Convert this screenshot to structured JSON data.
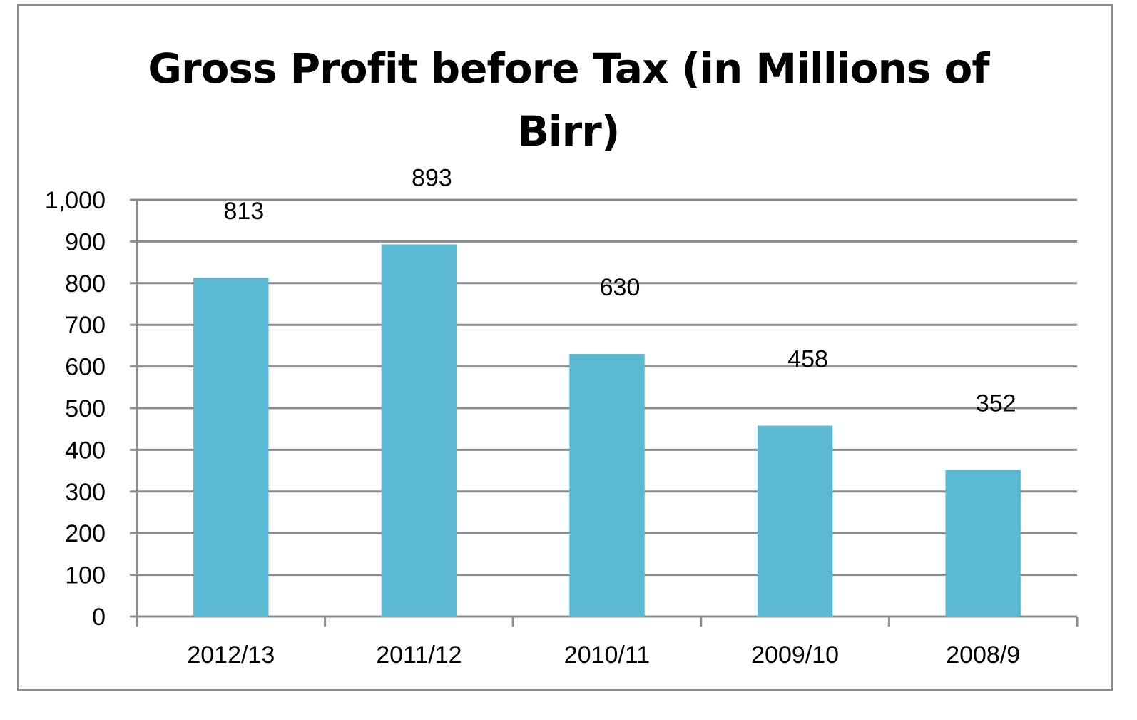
{
  "chart_data": {
    "type": "bar",
    "title_lines": [
      "Gross Profit before Tax (in Millions of",
      "Birr)"
    ],
    "xlabel": "",
    "ylabel": "",
    "categories": [
      "2012/13",
      "2011/12",
      "2010/11",
      "2009/10",
      "2008/9"
    ],
    "values": [
      813,
      893,
      630,
      458,
      352
    ],
    "data_labels": [
      "813",
      "893",
      "630",
      "458",
      "352"
    ],
    "ylim": [
      0,
      1000
    ],
    "ytick_values": [
      0,
      100,
      200,
      300,
      400,
      500,
      600,
      700,
      800,
      900,
      1000
    ],
    "ytick_labels": [
      "0",
      "100",
      "200",
      "300",
      "400",
      "500",
      "600",
      "700",
      "800",
      "900",
      "1,000"
    ],
    "grid": true,
    "legend": "none",
    "bar_color": "#5bb8d3",
    "grid_color": "#8c8c8c"
  }
}
